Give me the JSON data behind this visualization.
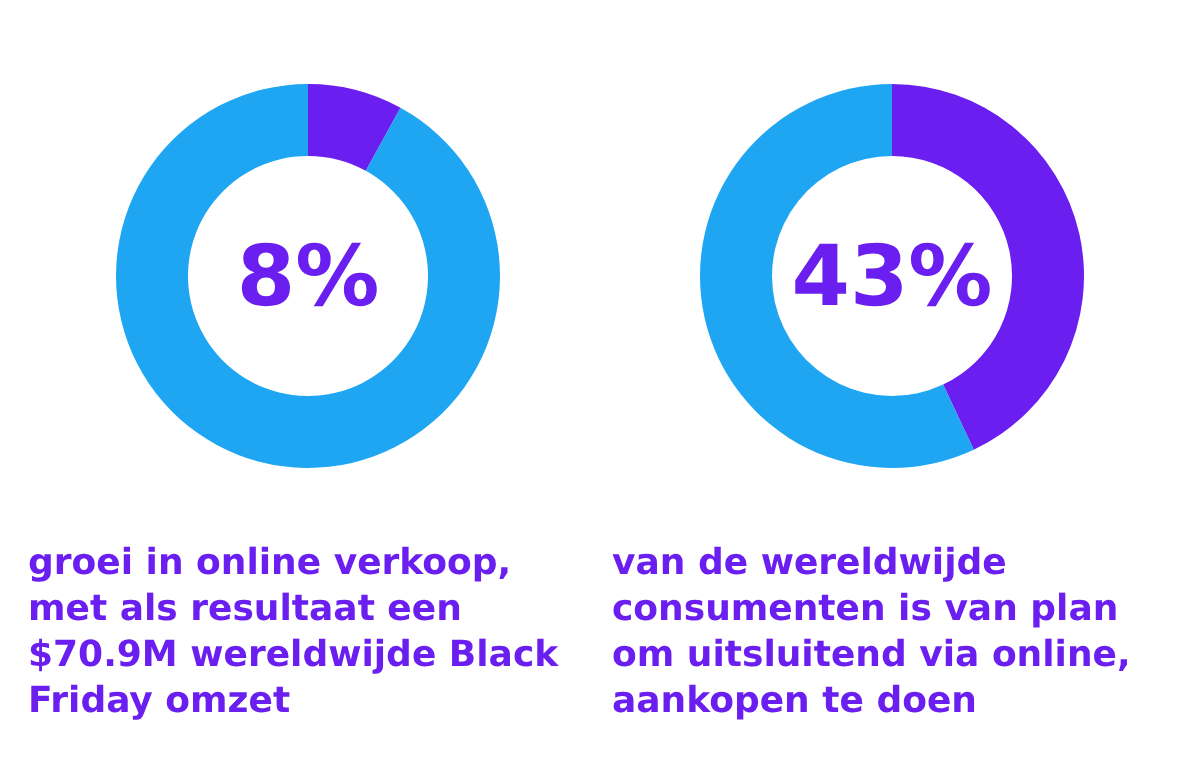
{
  "chart_data": [
    {
      "type": "donut",
      "categories": [
        null,
        null
      ],
      "values": [
        8,
        92
      ],
      "colors": [
        "#6a1ef0",
        "#1fa6f2"
      ],
      "value_labels": [
        "8%",
        null
      ],
      "annotations": [
        "groei in online verkoop, met als resultaat een $70.9M wereldwijde Black Friday omzet"
      ]
    },
    {
      "type": "donut",
      "categories": [
        null,
        null
      ],
      "values": [
        43,
        57
      ],
      "colors": [
        "#6a1ef0",
        "#1fa6f2"
      ],
      "value_labels": [
        "43%",
        null
      ],
      "annotations": [
        "van de wereldwijde consumenten is van plan om uitsluitend via online, aankopen te doen"
      ]
    }
  ]
}
